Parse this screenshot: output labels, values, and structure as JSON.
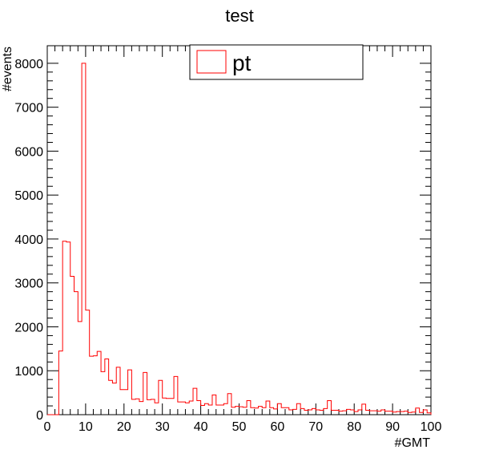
{
  "chart_data": {
    "type": "bar",
    "title": "test",
    "xlabel": "#GMT",
    "ylabel": "#events",
    "xlim": [
      0,
      100
    ],
    "ylim": [
      0,
      8400
    ],
    "x_ticks": [
      0,
      10,
      20,
      30,
      40,
      50,
      60,
      70,
      80,
      90,
      100
    ],
    "y_ticks": [
      0,
      1000,
      2000,
      3000,
      4000,
      5000,
      6000,
      7000,
      8000
    ],
    "legend_position": "top",
    "series": [
      {
        "name": "pt",
        "color": "#ff0000",
        "bin_width": 1,
        "bin_start": 0,
        "values": [
          0,
          0,
          0,
          1450,
          3950,
          3930,
          3150,
          2800,
          2120,
          8000,
          2380,
          1330,
          1340,
          1440,
          980,
          1270,
          780,
          720,
          1080,
          570,
          570,
          1020,
          350,
          360,
          300,
          960,
          340,
          350,
          270,
          780,
          380,
          370,
          370,
          870,
          290,
          290,
          270,
          310,
          600,
          320,
          210,
          250,
          220,
          450,
          220,
          220,
          250,
          480,
          170,
          190,
          180,
          170,
          320,
          160,
          150,
          190,
          160,
          310,
          160,
          130,
          250,
          160,
          160,
          110,
          120,
          250,
          140,
          100,
          110,
          140,
          110,
          100,
          140,
          320,
          100,
          100,
          80,
          90,
          120,
          110,
          70,
          110,
          240,
          100,
          90,
          90,
          80,
          110,
          80,
          80,
          60,
          70,
          70,
          80,
          50,
          60,
          150,
          50,
          110,
          40
        ]
      }
    ]
  }
}
